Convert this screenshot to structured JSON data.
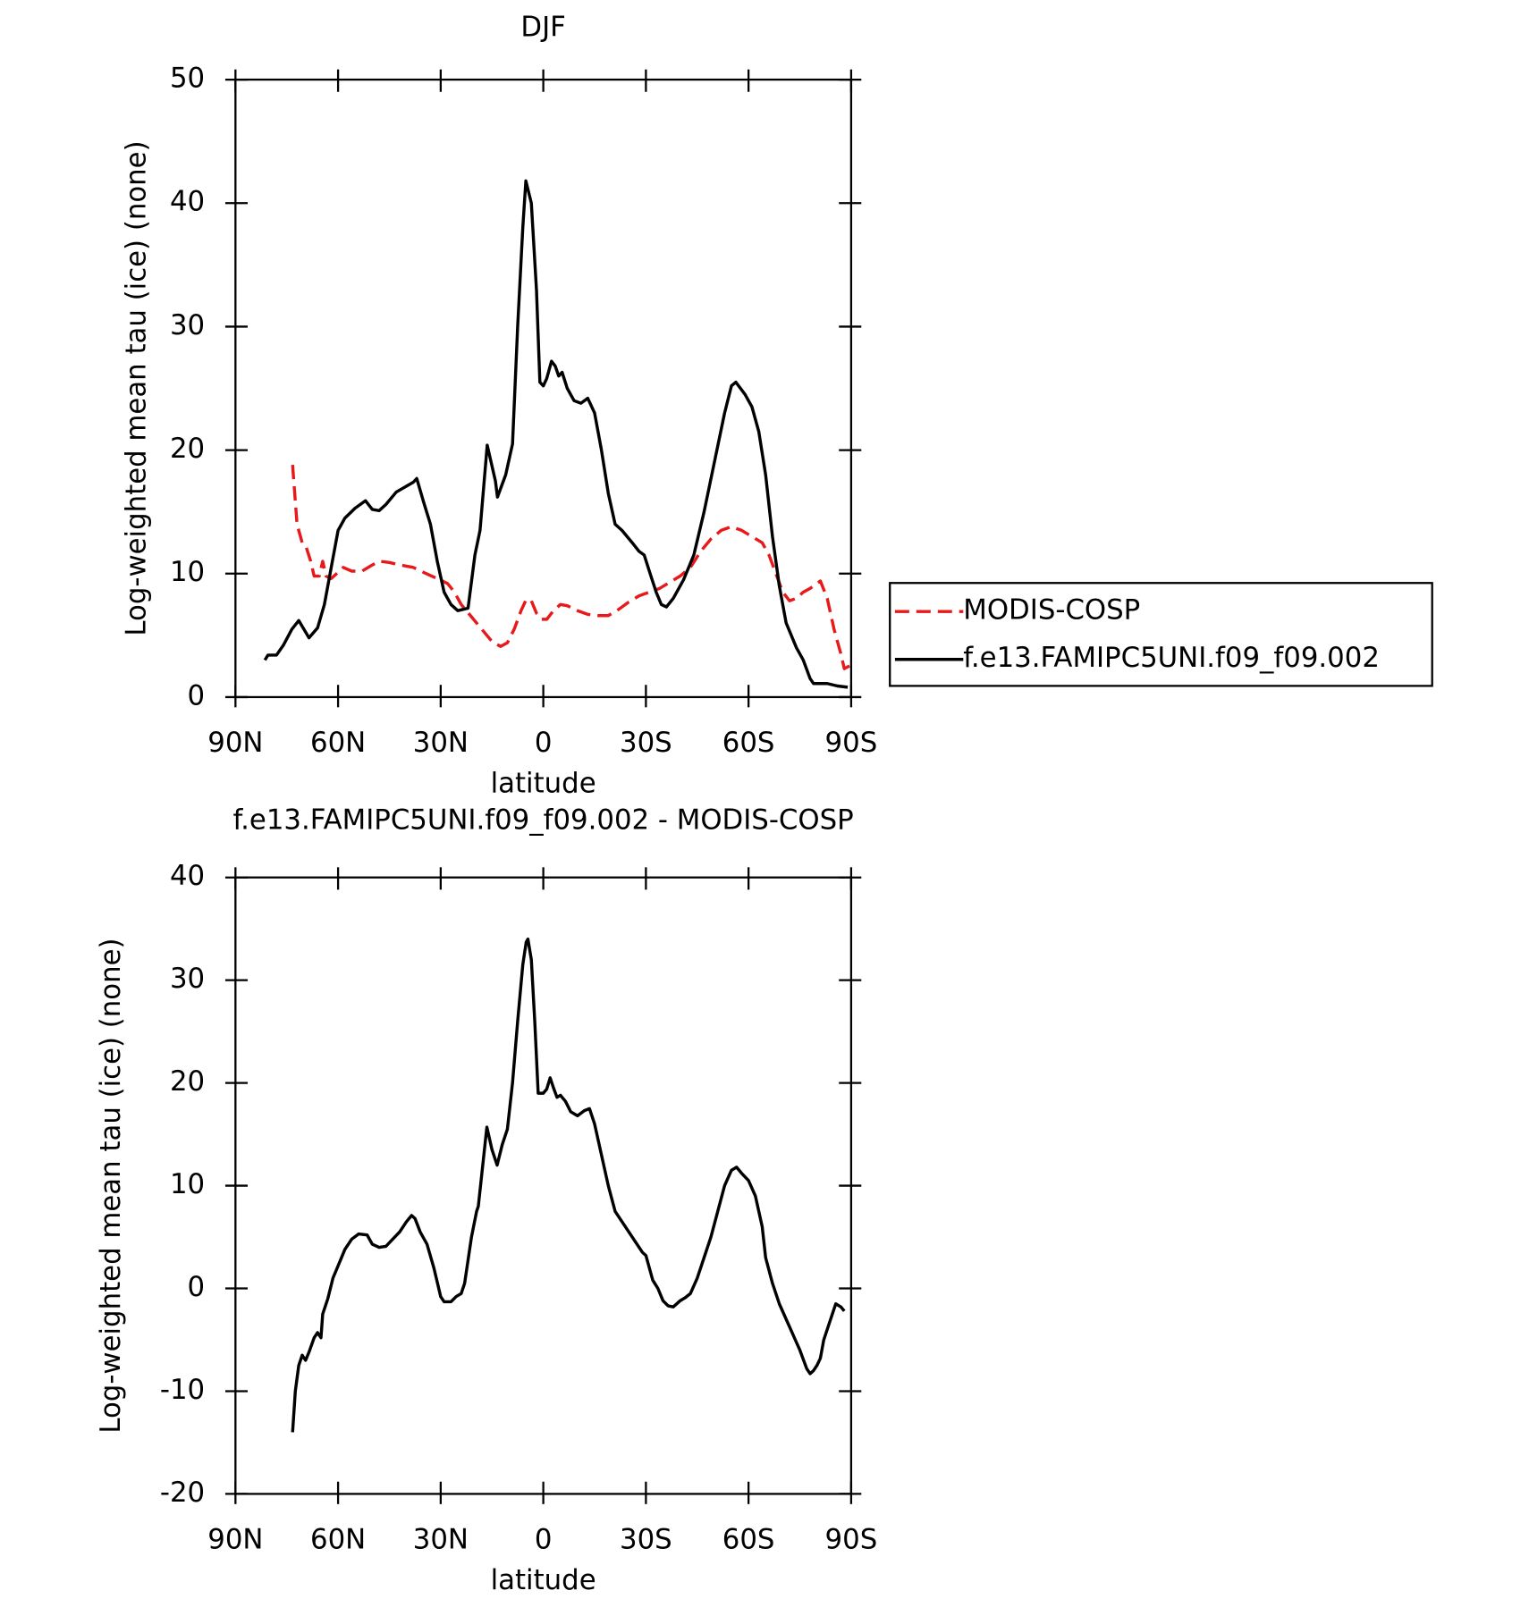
{
  "chart_data": [
    {
      "type": "line",
      "title": "DJF",
      "xlabel": "latitude",
      "ylabel": "Log-weighted mean tau (ice) (none)",
      "xlim": [
        90,
        -90
      ],
      "xticks": [
        {
          "value": 90,
          "label": "90N"
        },
        {
          "value": 60,
          "label": "60N"
        },
        {
          "value": 30,
          "label": "30N"
        },
        0,
        {
          "value": -30,
          "label": "30S"
        },
        {
          "value": -60,
          "label": "60S"
        },
        {
          "value": -90,
          "label": "90S"
        }
      ],
      "ylim": [
        0,
        50
      ],
      "yticks": [
        0,
        10,
        20,
        30,
        40,
        50
      ],
      "legend": "right",
      "series": [
        {
          "name": "MODIS-COSP",
          "color": "#e8191b",
          "style": "dashed",
          "x": [
            73.3,
            72,
            70.5,
            69.5,
            68,
            67,
            65.5,
            64.5,
            63.5,
            62,
            60,
            58.5,
            56,
            53,
            50,
            48,
            45,
            42,
            38,
            35,
            31,
            28,
            26,
            24,
            21,
            18,
            15,
            12.5,
            10.5,
            8.5,
            6.5,
            5,
            3.5,
            2,
            0.5,
            -1,
            -3,
            -5,
            -7,
            -10,
            -13,
            -16,
            -19,
            -22,
            -25,
            -28,
            -31,
            -34,
            -37,
            -40,
            -43,
            -46,
            -49,
            -52,
            -55,
            -58,
            -61,
            -64,
            -66,
            -68,
            -70,
            -72,
            -74,
            -76,
            -78,
            -81,
            -83,
            -85,
            -87,
            -88,
            -90
          ],
          "values": [
            18.8,
            14,
            12.5,
            12.3,
            11,
            9.8,
            9.8,
            11,
            9.8,
            9.6,
            10.1,
            10.5,
            10.2,
            10.2,
            10.7,
            11,
            10.9,
            10.7,
            10.5,
            10.1,
            9.6,
            9.2,
            8.5,
            7.5,
            6.5,
            5.5,
            4.5,
            4.1,
            4.4,
            5.5,
            7,
            7.9,
            7.8,
            6.8,
            6.3,
            6.3,
            7,
            7.5,
            7.4,
            7,
            6.7,
            6.6,
            6.6,
            7.1,
            7.7,
            8.2,
            8.5,
            8.8,
            9.3,
            9.8,
            10.5,
            11.8,
            12.8,
            13.5,
            13.8,
            13.5,
            13,
            12.5,
            11.5,
            10,
            8.5,
            7.8,
            8,
            8.5,
            8.8,
            9.4,
            8,
            5.5,
            3.5,
            2.3,
            2.6
          ]
        },
        {
          "name": "f.e13.FAMIPC5UNI.f09_f09.002",
          "color": "#000000",
          "style": "solid",
          "x": [
            81.4,
            80.5,
            78,
            76,
            73.5,
            71.5,
            68.5,
            66,
            64,
            62,
            60,
            58,
            55,
            52,
            50,
            48,
            46,
            43,
            38,
            37,
            35,
            33,
            31,
            29,
            27,
            25,
            22,
            20,
            18.5,
            16.4,
            14,
            13.4,
            11,
            9,
            7.5,
            6,
            5.1,
            3.5,
            2,
            1,
            0,
            -1,
            -2.4,
            -3.5,
            -4.5,
            -5.5,
            -7,
            -9,
            -11,
            -13,
            -15,
            -17,
            -19,
            -21,
            -23,
            -26,
            -28,
            -29.5,
            -31,
            -33,
            -34.5,
            -36,
            -38,
            -41,
            -44,
            -47,
            -50,
            -53,
            -55,
            -56.3,
            -59,
            -61,
            -63,
            -65,
            -67,
            -69,
            -71,
            -74,
            -76,
            -78,
            -79,
            -83,
            -86,
            -89
          ],
          "values": [
            3.0,
            3.4,
            3.4,
            4.2,
            5.5,
            6.2,
            4.8,
            5.6,
            7.5,
            10.5,
            13.5,
            14.5,
            15.3,
            15.9,
            15.2,
            15.1,
            15.6,
            16.6,
            17.4,
            17.7,
            15.8,
            14,
            11,
            8.5,
            7.5,
            7,
            7.2,
            11.5,
            13.5,
            20.4,
            17.5,
            16.2,
            18,
            20.5,
            30,
            38,
            41.8,
            40,
            33,
            25.5,
            25.2,
            25.8,
            27.2,
            26.8,
            26,
            26.3,
            25,
            24,
            23.8,
            24.2,
            23,
            20,
            16.5,
            14,
            13.5,
            12.5,
            11.8,
            11.5,
            10.2,
            8.5,
            7.5,
            7.3,
            8,
            9.5,
            11.5,
            15,
            19,
            23,
            25.2,
            25.5,
            24.5,
            23.5,
            21.5,
            18,
            13,
            9,
            6,
            4,
            3,
            1.5,
            1.1,
            1.1,
            0.9,
            0.8
          ]
        }
      ]
    },
    {
      "type": "line",
      "title": "f.e13.FAMIPC5UNI.f09_f09.002 - MODIS-COSP",
      "xlabel": "latitude",
      "ylabel": "Log-weighted mean tau (ice) (none)",
      "xlim": [
        90,
        -90
      ],
      "xticks": [
        {
          "value": 90,
          "label": "90N"
        },
        {
          "value": 60,
          "label": "60N"
        },
        {
          "value": 30,
          "label": "30N"
        },
        0,
        {
          "value": -30,
          "label": "30S"
        },
        {
          "value": -60,
          "label": "60S"
        },
        {
          "value": -90,
          "label": "90S"
        }
      ],
      "ylim": [
        -20,
        40
      ],
      "yticks": [
        -20,
        -10,
        0,
        10,
        20,
        30,
        40
      ],
      "series": [
        {
          "color": "#000000",
          "style": "solid",
          "x": [
            73.3,
            72.5,
            71.5,
            70.5,
            69.5,
            68.5,
            67,
            66,
            65,
            64.5,
            63,
            61.5,
            60,
            58,
            56,
            54,
            51.5,
            50,
            48,
            46,
            44,
            42,
            40,
            38.5,
            37.5,
            36,
            34,
            32,
            30,
            29,
            27,
            25.5,
            24,
            23,
            21,
            19.5,
            19,
            16.5,
            15,
            13.5,
            12,
            10.5,
            9,
            7.5,
            6,
            5,
            4.5,
            3.5,
            2.5,
            1.5,
            0,
            -1,
            -2,
            -3,
            -4,
            -5,
            -6.5,
            -8,
            -10,
            -12,
            -13.5,
            -15,
            -17,
            -19,
            -21,
            -23,
            -25,
            -27,
            -29,
            -30,
            -31,
            -32,
            -33.5,
            -35,
            -36.5,
            -38,
            -40,
            -41.5,
            -43,
            -45,
            -47,
            -49,
            -51,
            -53,
            -55,
            -56.5,
            -58,
            -60,
            -62,
            -64,
            -65,
            -67,
            -69,
            -71,
            -73,
            -75,
            -77,
            -78,
            -79,
            -80,
            -81,
            -82,
            -84,
            -85.5,
            -87,
            -88
          ],
          "values": [
            -14,
            -10,
            -7.5,
            -6.5,
            -7,
            -6.2,
            -4.8,
            -4.3,
            -4.8,
            -2.5,
            -1,
            1,
            2.2,
            3.8,
            4.8,
            5.3,
            5.2,
            4.3,
            4,
            4.1,
            4.8,
            5.5,
            6.5,
            7.1,
            6.8,
            5.5,
            4.3,
            2,
            -0.8,
            -1.3,
            -1.3,
            -0.8,
            -0.5,
            0.5,
            5,
            7.5,
            8,
            15.7,
            13.5,
            12,
            14,
            15.5,
            20,
            26,
            31.5,
            33.7,
            34,
            32,
            26,
            19,
            19,
            19.4,
            20.5,
            19.5,
            18.6,
            18.8,
            18.2,
            17.2,
            16.8,
            17.3,
            17.5,
            16,
            13,
            10,
            7.5,
            6.5,
            5.5,
            4.5,
            3.5,
            3.2,
            2,
            0.8,
            0,
            -1.2,
            -1.7,
            -1.8,
            -1.2,
            -0.9,
            -0.5,
            1,
            3,
            5,
            7.5,
            10,
            11.5,
            11.8,
            11.2,
            10.5,
            9,
            6,
            3,
            0.5,
            -1.5,
            -3,
            -4.5,
            -6,
            -7.8,
            -8.3,
            -8,
            -7.5,
            -6.8,
            -5,
            -3,
            -1.5,
            -1.8,
            -2.2
          ]
        }
      ]
    }
  ]
}
